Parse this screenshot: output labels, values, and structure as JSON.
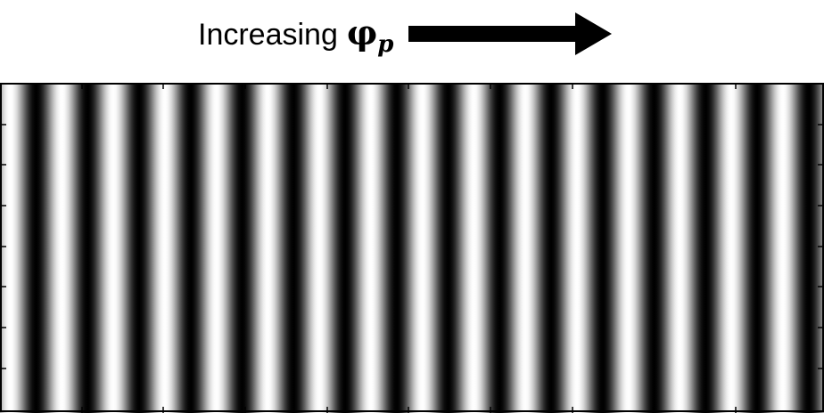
{
  "caption": {
    "text": "Increasing",
    "symbol": "φ",
    "subscript": "p"
  },
  "arrow_icon": "right-arrow-icon",
  "fringe_pattern": {
    "stripe_count": 16,
    "colors": {
      "dark": "#000000",
      "light": "#ffffff",
      "frame": "#000000"
    }
  }
}
